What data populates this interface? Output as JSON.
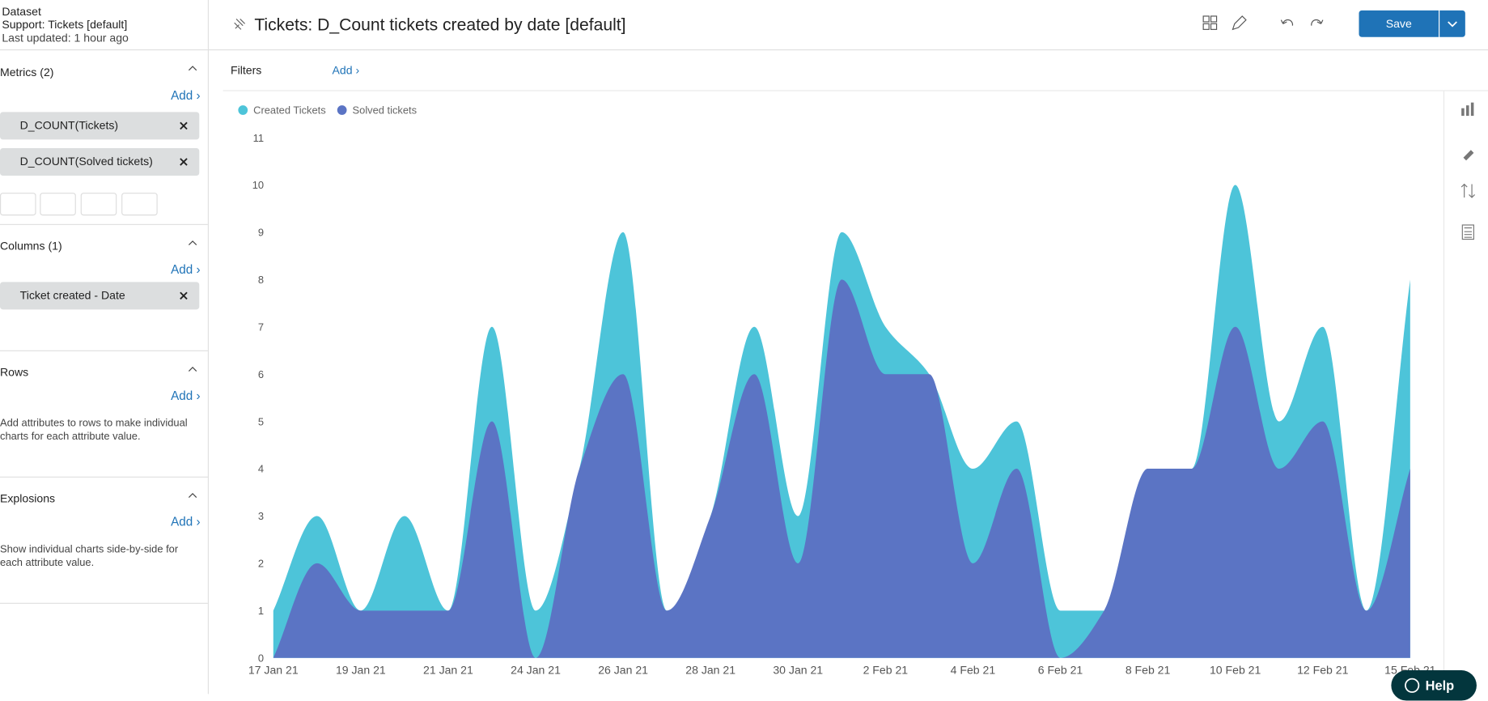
{
  "dataset": {
    "label": "Dataset",
    "name": "Support: Tickets [default]",
    "updated": "Last updated: 1 hour ago"
  },
  "header": {
    "title": "Tickets: D_Count tickets created by date [default]",
    "save": "Save"
  },
  "filters": {
    "label": "Filters",
    "add": "Add"
  },
  "sidebar": {
    "metrics": {
      "title": "Metrics (2)",
      "add": "Add",
      "items": [
        "D_COUNT(Tickets)",
        "D_COUNT(Solved tickets)"
      ]
    },
    "columns": {
      "title": "Columns (1)",
      "add": "Add",
      "items": [
        "Ticket created - Date"
      ]
    },
    "rows": {
      "title": "Rows",
      "add": "Add",
      "hint": "Add attributes to rows to make individual charts for each attribute value."
    },
    "explosions": {
      "title": "Explosions",
      "add": "Add",
      "hint": "Show individual charts side-by-side for each attribute value."
    }
  },
  "help": "Help",
  "chart_data": {
    "type": "area",
    "categories": [
      "17 Jan 21",
      null,
      "19 Jan 21",
      null,
      "21 Jan 21",
      null,
      "24 Jan 21",
      null,
      "26 Jan 21",
      null,
      "28 Jan 21",
      null,
      "30 Jan 21",
      null,
      "2 Feb 21",
      null,
      "4 Feb 21",
      null,
      "6 Feb 21",
      null,
      "8 Feb 21",
      null,
      "10 Feb 21",
      null,
      "12 Feb 21",
      null,
      "15 Feb 21"
    ],
    "series": [
      {
        "name": "Created Tickets",
        "color": "#4dc4d9",
        "values": [
          1,
          3,
          1,
          3,
          1,
          7,
          1,
          4,
          9,
          1,
          3,
          7,
          3,
          9,
          7,
          6,
          4,
          5,
          1,
          1,
          4,
          4,
          10,
          5,
          7,
          1,
          8
        ]
      },
      {
        "name": "Solved tickets",
        "color": "#5b74c4",
        "values": [
          0,
          2,
          1,
          1,
          1,
          5,
          0,
          4,
          6,
          1,
          3,
          6,
          2,
          8,
          6,
          6,
          2,
          4,
          0,
          1,
          4,
          4,
          7,
          4,
          5,
          1,
          4
        ]
      }
    ],
    "ylim": [
      0,
      11
    ],
    "yticks": [
      0,
      1,
      2,
      3,
      4,
      5,
      6,
      7,
      8,
      9,
      10,
      11
    ]
  }
}
